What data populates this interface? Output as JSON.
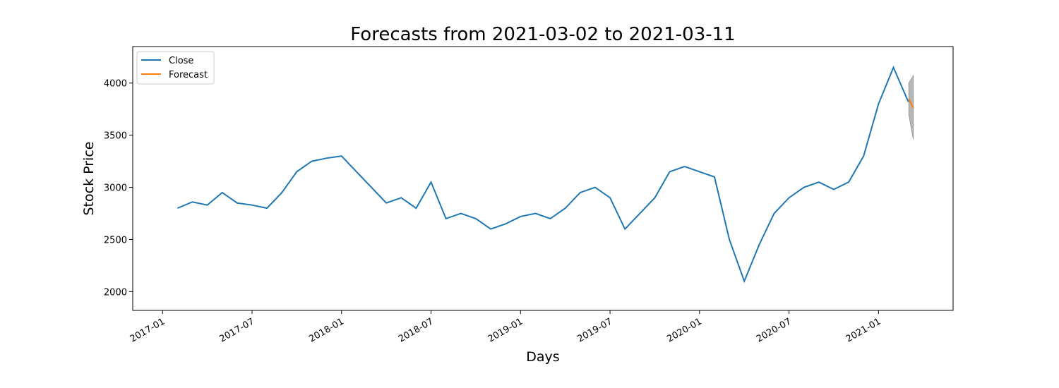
{
  "chart_data": {
    "type": "line",
    "title": "Forecasts from 2021-03-02 to 2021-03-11",
    "xlabel": "Days",
    "ylabel": "Stock Price",
    "legend": "upper left",
    "grid": false,
    "series": [
      {
        "name": "Close",
        "color": "#1f77b4",
        "x": [
          "2017-02",
          "2017-03",
          "2017-04",
          "2017-05",
          "2017-06",
          "2017-07",
          "2017-08",
          "2017-09",
          "2017-10",
          "2017-11",
          "2017-12",
          "2018-01",
          "2018-02",
          "2018-03",
          "2018-04",
          "2018-05",
          "2018-06",
          "2018-07",
          "2018-08",
          "2018-09",
          "2018-10",
          "2018-11",
          "2018-12",
          "2019-01",
          "2019-02",
          "2019-03",
          "2019-04",
          "2019-05",
          "2019-06",
          "2019-07",
          "2019-08",
          "2019-09",
          "2019-10",
          "2019-11",
          "2019-12",
          "2020-01",
          "2020-02",
          "2020-03",
          "2020-04",
          "2020-05",
          "2020-06",
          "2020-07",
          "2020-08",
          "2020-09",
          "2020-10",
          "2020-11",
          "2020-12",
          "2021-01",
          "2021-02",
          "2021-03"
        ],
        "values": [
          2800,
          2860,
          2830,
          2950,
          2850,
          2830,
          2800,
          2950,
          3150,
          3250,
          3280,
          3300,
          3150,
          3000,
          2850,
          2900,
          2800,
          3050,
          2700,
          2750,
          2700,
          2600,
          2650,
          2720,
          2750,
          2700,
          2800,
          2950,
          3000,
          2900,
          2600,
          2750,
          2900,
          3150,
          3200,
          3150,
          3100,
          2500,
          2100,
          2450,
          2750,
          2900,
          3000,
          3050,
          2980,
          3050,
          3300,
          3800,
          4150,
          3820
        ]
      },
      {
        "name": "Forecast",
        "color": "#ff7f0e",
        "band_color": "#999999",
        "x": [
          "2021-03-02",
          "2021-03-11"
        ],
        "values": [
          3850,
          3760
        ],
        "lower": [
          3700,
          3460
        ],
        "upper": [
          4000,
          4070
        ]
      }
    ],
    "xlim": [
      "2016-11",
      "2021-06"
    ],
    "xticks": [
      "2017-01",
      "2017-07",
      "2018-01",
      "2018-07",
      "2019-01",
      "2019-07",
      "2020-01",
      "2020-07",
      "2021-01"
    ],
    "ylim": [
      1820,
      4350
    ],
    "yticks": [
      2000,
      2500,
      3000,
      3500,
      4000
    ]
  }
}
